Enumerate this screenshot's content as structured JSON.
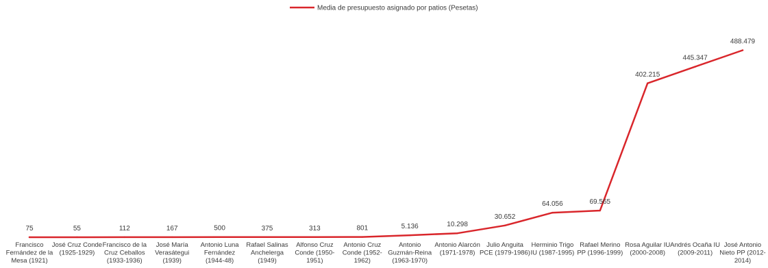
{
  "chart_data": {
    "type": "line",
    "legend": {
      "position": "top"
    },
    "grid": false,
    "ylim": [
      0,
      500000
    ],
    "categories": [
      [
        "Francisco",
        "Fernández de la",
        "Mesa (1921)"
      ],
      [
        "José Cruz Conde",
        "(1925-1929)"
      ],
      [
        "Francisco de la",
        "Cruz Ceballos",
        "(1933-1936)"
      ],
      [
        "José María",
        "Verasátegui",
        "(1939)"
      ],
      [
        "Antonio Luna",
        "Fernández",
        "(1944-48)"
      ],
      [
        "Rafael Salinas",
        "Anchelerga",
        "(1949)"
      ],
      [
        "Alfonso Cruz",
        "Conde (1950-",
        "1951)"
      ],
      [
        "Antonio Cruz",
        "Conde (1952-",
        "1962)"
      ],
      [
        "Antonio",
        "Guzmán-Reina",
        "(1963-1970)"
      ],
      [
        "Antonio Alarcón",
        "(1971-1978)"
      ],
      [
        "Julio Anguita",
        "PCE (1979-1986)"
      ],
      [
        "Herminio Trigo",
        "IU (1987-1995)"
      ],
      [
        "Rafael Merino",
        "PP (1996-1999)"
      ],
      [
        "Rosa Aguilar IU",
        "(2000-2008)"
      ],
      [
        "Andrés Ocaña IU",
        "(2009-2011)"
      ],
      [
        "José Antonio",
        "Nieto PP (2012-",
        "2014)"
      ]
    ],
    "series": [
      {
        "name": "Media de presupuesto asignado por patios (Pesetas)",
        "color": "#d9262b",
        "values": [
          75,
          55,
          112,
          167,
          500,
          375,
          313,
          801,
          5136,
          10298,
          30652,
          64056,
          69565,
          402215,
          445347,
          488479
        ],
        "labels": [
          "75",
          "55",
          "112",
          "167",
          "500",
          "375",
          "313",
          "801",
          "5.136",
          "10.298",
          "30.652",
          "64.056",
          "69.565",
          "402.215",
          "445.347",
          "488.479"
        ]
      }
    ]
  }
}
